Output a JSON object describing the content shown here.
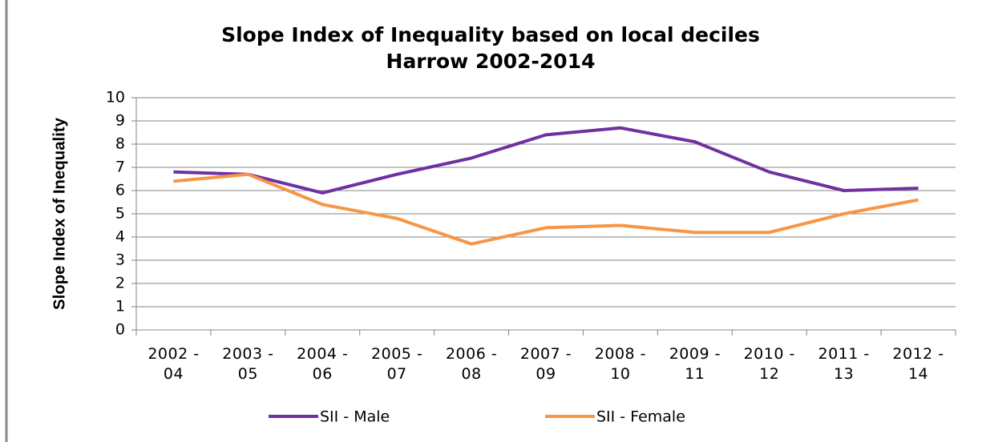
{
  "chart_data": {
    "type": "line",
    "title": "Slope Index of Inequality based on local deciles",
    "subtitle": "Harrow 2002-2014",
    "y_label": "Slope Index of Inequality",
    "categories": [
      "2002 - 04",
      "2003 - 05",
      "2004 - 06",
      "2005 - 07",
      "2006 - 08",
      "2007 - 09",
      "2008 - 10",
      "2009 - 11",
      "2010 - 12",
      "2011 - 13",
      "2012 - 14"
    ],
    "series": [
      {
        "name": "SII - Male",
        "color": "#7030a0",
        "values": [
          6.8,
          6.7,
          5.9,
          6.7,
          7.4,
          8.4,
          8.7,
          8.1,
          6.8,
          6.0,
          6.1
        ]
      },
      {
        "name": "SII - Female",
        "color": "#f79646",
        "values": [
          6.4,
          6.7,
          5.4,
          4.8,
          3.7,
          4.4,
          4.5,
          4.2,
          4.2,
          5.0,
          5.6
        ]
      }
    ],
    "ylim": [
      0,
      10
    ],
    "yticks": [
      0,
      1,
      2,
      3,
      4,
      5,
      6,
      7,
      8,
      9,
      10
    ],
    "grid": true,
    "legend": "bottom"
  }
}
